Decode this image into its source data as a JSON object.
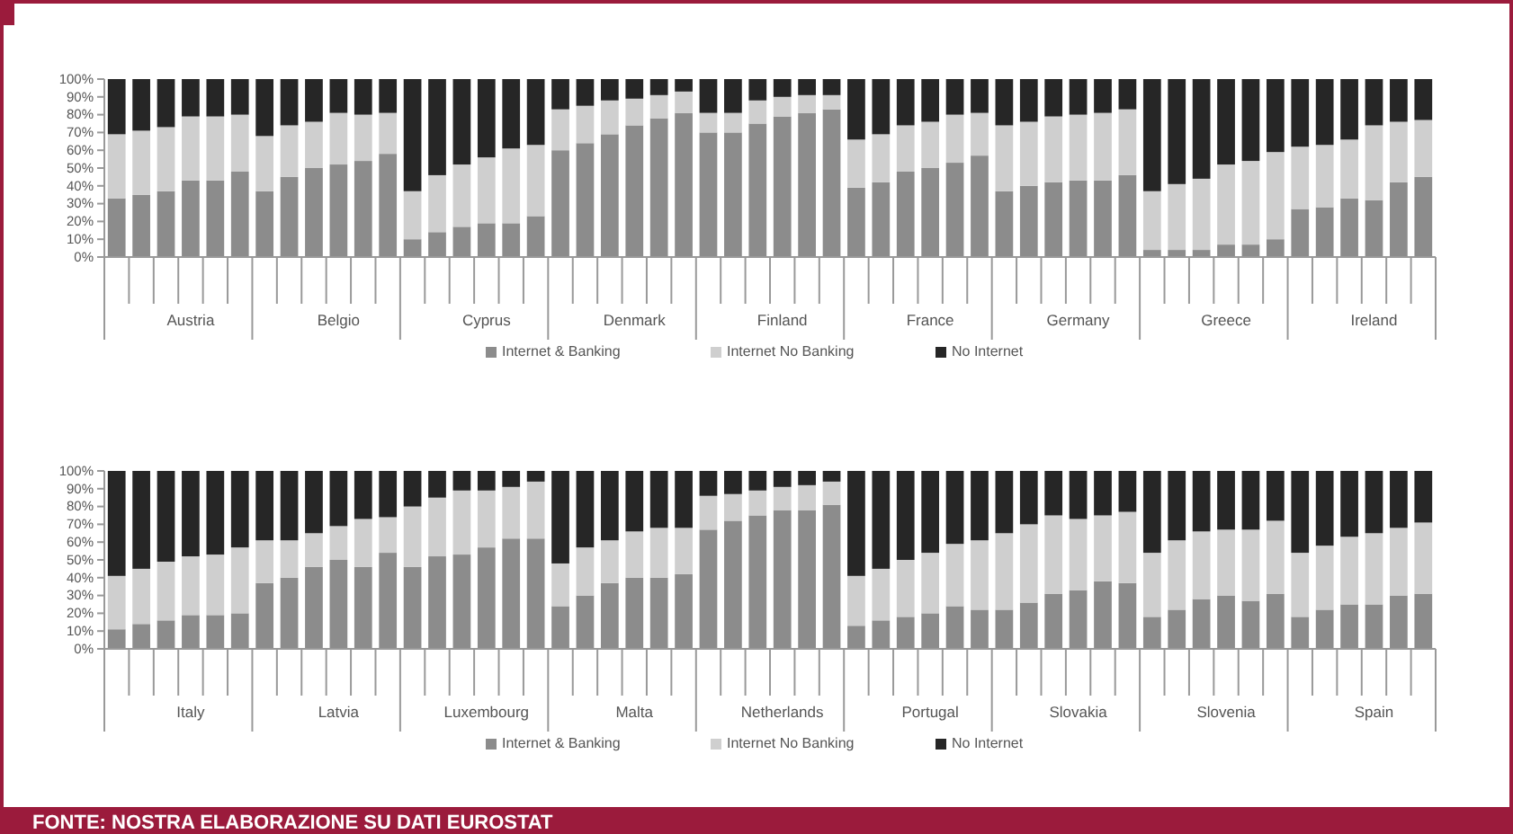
{
  "chart_data": [
    {
      "type": "bar",
      "stacked": true,
      "legend": "bottom",
      "ylim": [
        0,
        100
      ],
      "yticks": [
        {
          "value": 0,
          "label": "0%"
        },
        {
          "value": 10,
          "label": "10%"
        },
        {
          "value": 20,
          "label": "20%"
        },
        {
          "value": 30,
          "label": "30%"
        },
        {
          "value": 40,
          "label": "40%"
        },
        {
          "value": 50,
          "label": "50%"
        },
        {
          "value": 60,
          "label": "60%"
        },
        {
          "value": 70,
          "label": "70%"
        },
        {
          "value": 80,
          "label": "80%"
        },
        {
          "value": 90,
          "label": "90%"
        },
        {
          "value": 100,
          "label": "100%"
        }
      ],
      "categories": [
        null,
        null,
        null,
        "Austria",
        null,
        null,
        null,
        null,
        null,
        "Belgio",
        null,
        null,
        null,
        null,
        null,
        "Cyprus",
        null,
        null,
        null,
        null,
        null,
        "Denmark",
        null,
        null,
        null,
        null,
        null,
        "Finland",
        null,
        null,
        null,
        null,
        null,
        "France",
        null,
        null,
        null,
        null,
        null,
        "Germany",
        null,
        null,
        null,
        null,
        null,
        "Greece",
        null,
        null,
        null,
        null,
        null,
        "Ireland",
        null,
        null
      ],
      "series": [
        {
          "name": "Internet & Banking",
          "color": "#8c8c8c",
          "values": [
            33,
            35,
            37,
            43,
            43,
            48,
            37,
            45,
            50,
            52,
            54,
            58,
            10,
            14,
            17,
            19,
            19,
            23,
            60,
            64,
            69,
            74,
            78,
            81,
            70,
            70,
            75,
            79,
            81,
            83,
            39,
            42,
            48,
            50,
            53,
            57,
            37,
            40,
            42,
            43,
            43,
            46,
            4,
            4,
            4,
            7,
            7,
            10,
            27,
            28,
            33,
            32,
            42,
            45
          ]
        },
        {
          "name": "Internet No Banking",
          "color": "#cfcfcf",
          "values": [
            36,
            36,
            36,
            36,
            36,
            32,
            31,
            29,
            26,
            29,
            26,
            23,
            27,
            32,
            35,
            37,
            42,
            40,
            23,
            21,
            19,
            15,
            13,
            12,
            11,
            11,
            13,
            11,
            10,
            8,
            27,
            27,
            26,
            26,
            27,
            24,
            37,
            36,
            37,
            37,
            38,
            37,
            33,
            37,
            40,
            45,
            47,
            49,
            35,
            35,
            33,
            42,
            34,
            32
          ]
        },
        {
          "name": "No Internet",
          "color": "#262626",
          "values": [
            31,
            29,
            27,
            21,
            21,
            20,
            32,
            26,
            24,
            19,
            20,
            19,
            63,
            54,
            48,
            44,
            39,
            37,
            17,
            15,
            12,
            11,
            9,
            7,
            19,
            19,
            12,
            10,
            9,
            9,
            34,
            31,
            26,
            24,
            20,
            19,
            26,
            24,
            21,
            20,
            19,
            17,
            63,
            59,
            56,
            48,
            46,
            41,
            38,
            37,
            34,
            26,
            24,
            23
          ]
        }
      ]
    },
    {
      "type": "bar",
      "stacked": true,
      "legend": "bottom",
      "ylim": [
        0,
        100
      ],
      "yticks": [
        {
          "value": 0,
          "label": "0%"
        },
        {
          "value": 10,
          "label": "10%"
        },
        {
          "value": 20,
          "label": "20%"
        },
        {
          "value": 30,
          "label": "30%"
        },
        {
          "value": 40,
          "label": "40%"
        },
        {
          "value": 50,
          "label": "50%"
        },
        {
          "value": 60,
          "label": "60%"
        },
        {
          "value": 70,
          "label": "70%"
        },
        {
          "value": 80,
          "label": "80%"
        },
        {
          "value": 90,
          "label": "90%"
        },
        {
          "value": 100,
          "label": "100%"
        }
      ],
      "categories": [
        null,
        null,
        null,
        "Italy",
        null,
        null,
        null,
        null,
        null,
        "Latvia",
        null,
        null,
        null,
        null,
        null,
        "Luxembourg",
        null,
        null,
        null,
        null,
        null,
        "Malta",
        null,
        null,
        null,
        null,
        null,
        "Netherlands",
        null,
        null,
        null,
        null,
        null,
        "Portugal",
        null,
        null,
        null,
        null,
        null,
        "Slovakia",
        null,
        null,
        null,
        null,
        null,
        "Slovenia",
        null,
        null,
        null,
        null,
        null,
        "Spain",
        null,
        null
      ],
      "series": [
        {
          "name": "Internet & Banking",
          "color": "#8c8c8c",
          "values": [
            11,
            14,
            16,
            19,
            19,
            20,
            37,
            40,
            46,
            50,
            46,
            54,
            46,
            52,
            53,
            57,
            62,
            62,
            24,
            30,
            37,
            40,
            40,
            42,
            67,
            72,
            75,
            78,
            78,
            81,
            13,
            16,
            18,
            20,
            24,
            22,
            22,
            26,
            31,
            33,
            38,
            37,
            18,
            22,
            28,
            30,
            27,
            31,
            18,
            22,
            25,
            25,
            30,
            31
          ]
        },
        {
          "name": "Internet No Banking",
          "color": "#cfcfcf",
          "values": [
            30,
            31,
            33,
            33,
            34,
            37,
            24,
            21,
            19,
            19,
            27,
            20,
            34,
            33,
            36,
            32,
            29,
            32,
            24,
            27,
            24,
            26,
            28,
            26,
            19,
            15,
            14,
            13,
            14,
            13,
            28,
            29,
            32,
            34,
            35,
            39,
            43,
            44,
            44,
            40,
            37,
            40,
            36,
            39,
            38,
            37,
            40,
            41,
            36,
            36,
            38,
            40,
            38,
            40
          ]
        },
        {
          "name": "No Internet",
          "color": "#262626",
          "values": [
            59,
            55,
            51,
            48,
            47,
            43,
            39,
            39,
            35,
            31,
            27,
            26,
            20,
            15,
            11,
            11,
            9,
            6,
            52,
            43,
            39,
            34,
            32,
            32,
            14,
            13,
            11,
            9,
            8,
            6,
            59,
            55,
            50,
            46,
            41,
            39,
            35,
            30,
            25,
            27,
            25,
            23,
            46,
            39,
            34,
            33,
            33,
            28,
            46,
            42,
            37,
            35,
            32,
            29
          ]
        }
      ],
      "annotations": [
        "FONTE: NOSTRA ELABORAZIONE SU DATI EUROSTAT"
      ]
    }
  ]
}
